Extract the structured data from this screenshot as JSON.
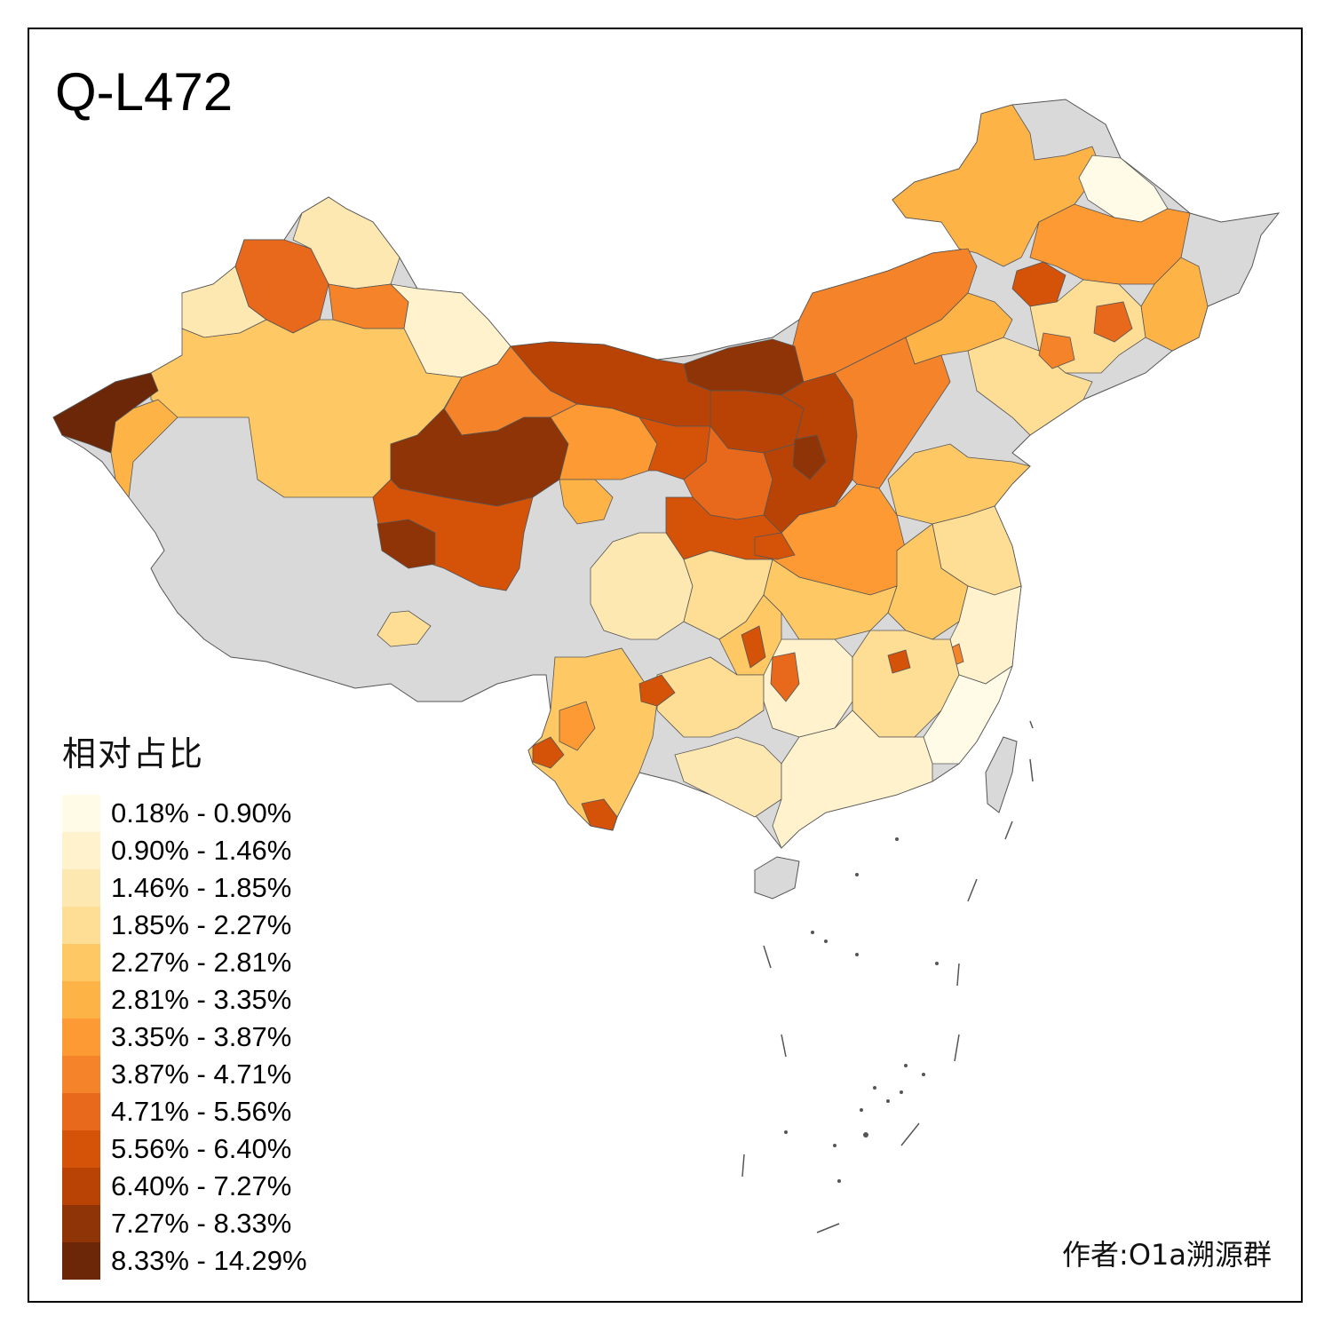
{
  "title": "Q-L472",
  "legend": {
    "title": "相对占比",
    "items": [
      {
        "label": "0.18% - 0.90%",
        "color": "#fffbe6"
      },
      {
        "label": "0.90% - 1.46%",
        "color": "#fff2cc"
      },
      {
        "label": "1.46% - 1.85%",
        "color": "#fee8b2"
      },
      {
        "label": "1.85% - 2.27%",
        "color": "#fedd94"
      },
      {
        "label": "2.27% - 2.81%",
        "color": "#fec965"
      },
      {
        "label": "2.81% - 3.35%",
        "color": "#feb347"
      },
      {
        "label": "3.35% - 3.87%",
        "color": "#fd9a33"
      },
      {
        "label": "3.87% - 4.71%",
        "color": "#f5832a"
      },
      {
        "label": "4.71% - 5.56%",
        "color": "#e8691c"
      },
      {
        "label": "5.56% - 6.40%",
        "color": "#d45309"
      },
      {
        "label": "6.40% - 7.27%",
        "color": "#b84305"
      },
      {
        "label": "7.27% - 8.33%",
        "color": "#8f3406"
      },
      {
        "label": "8.33% - 14.29%",
        "color": "#6b2708"
      }
    ]
  },
  "credit": "作者:O1a溯源群",
  "colors": {
    "no_data": "#d9d9d9",
    "border": "#555555"
  }
}
